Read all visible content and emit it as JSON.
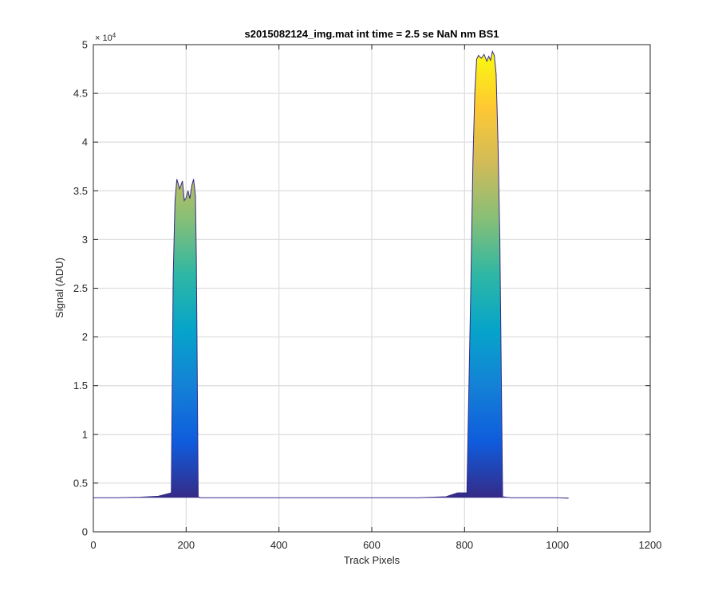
{
  "chart_data": {
    "type": "area",
    "title": "s2015082124_img.mat int time = 2.5 se  NaN nm BS1",
    "xlabel": "Track Pixels",
    "ylabel": "Signal (ADU)",
    "y_exponent": "× 10⁴",
    "y_exponent_base": "× 10",
    "y_exponent_power": "4",
    "xlim": [
      0,
      1200
    ],
    "ylim": [
      0,
      50000
    ],
    "xticks": [
      0,
      200,
      400,
      600,
      800,
      1000,
      1200
    ],
    "yticks": [
      0,
      5000,
      10000,
      15000,
      20000,
      25000,
      30000,
      35000,
      40000,
      45000,
      50000
    ],
    "ytick_labels": [
      "0",
      "0.5",
      "1",
      "1.5",
      "2",
      "2.5",
      "3",
      "3.5",
      "4",
      "4.5",
      "5"
    ],
    "grid": true,
    "colormap": "parula",
    "colormap_stops": [
      "#352a87",
      "#0f5cdd",
      "#1481d6",
      "#06a4ca",
      "#2eb7a4",
      "#87bf77",
      "#d1bb59",
      "#fec832",
      "#f9fb0e"
    ],
    "baseline": 3500,
    "x": [
      0,
      50,
      100,
      140,
      160,
      168,
      172,
      176,
      180,
      186,
      192,
      196,
      200,
      204,
      208,
      212,
      216,
      220,
      222,
      226,
      230,
      250,
      400,
      600,
      700,
      760,
      785,
      805,
      813,
      818,
      822,
      826,
      830,
      836,
      842,
      848,
      852,
      856,
      860,
      864,
      868,
      872,
      876,
      882,
      900,
      1000,
      1024
    ],
    "y": [
      3500,
      3500,
      3550,
      3650,
      3900,
      4000,
      26000,
      34000,
      36200,
      35200,
      36000,
      34000,
      34300,
      35000,
      34200,
      35500,
      36200,
      34500,
      28000,
      3600,
      3500,
      3500,
      3500,
      3500,
      3500,
      3600,
      4000,
      4000,
      24000,
      38000,
      45000,
      48500,
      48900,
      48600,
      49000,
      48300,
      48800,
      48400,
      49300,
      48900,
      47000,
      40000,
      30000,
      3600,
      3500,
      3500,
      3450
    ]
  }
}
